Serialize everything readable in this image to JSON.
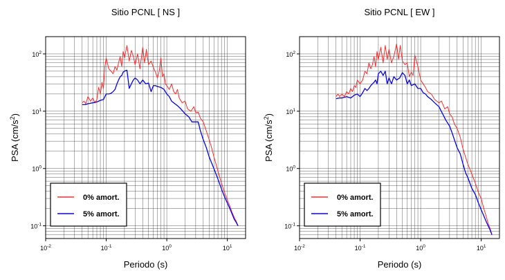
{
  "chart_data": [
    {
      "type": "line",
      "title": "Sitio PCNL [ NS ]",
      "xlabel": "Periodo (s)",
      "ylabel_main": "PSA (cm/s",
      "ylabel_sup": "2",
      "ylabel_close": ")",
      "xscale": "log",
      "yscale": "log",
      "xlim": [
        0.01,
        20
      ],
      "ylim": [
        0.06,
        200
      ],
      "grid": true,
      "legend_placement": "bottom-left",
      "x_ticks": [
        {
          "base": "10",
          "exp": "-2",
          "value": 0.01
        },
        {
          "base": "10",
          "exp": "-1",
          "value": 0.1
        },
        {
          "base": "10",
          "exp": "0",
          "value": 1
        },
        {
          "base": "10",
          "exp": "1",
          "value": 10
        }
      ],
      "y_ticks": [
        {
          "base": "10",
          "exp": "-1",
          "value": 0.1
        },
        {
          "base": "10",
          "exp": "0",
          "value": 1
        },
        {
          "base": "10",
          "exp": "1",
          "value": 10
        },
        {
          "base": "10",
          "exp": "2",
          "value": 100
        }
      ],
      "series": [
        {
          "name": "0% amort.",
          "color": "#ff2a2a",
          "x": [
            0.04,
            0.043,
            0.046,
            0.05,
            0.055,
            0.06,
            0.065,
            0.07,
            0.075,
            0.08,
            0.085,
            0.09,
            0.095,
            0.1,
            0.11,
            0.12,
            0.13,
            0.14,
            0.15,
            0.16,
            0.17,
            0.18,
            0.19,
            0.2,
            0.22,
            0.24,
            0.26,
            0.28,
            0.3,
            0.33,
            0.36,
            0.4,
            0.43,
            0.46,
            0.5,
            0.55,
            0.6,
            0.65,
            0.7,
            0.75,
            0.8,
            0.85,
            0.9,
            0.95,
            1.0,
            1.1,
            1.2,
            1.3,
            1.4,
            1.5,
            1.6,
            1.8,
            2.0,
            2.2,
            2.5,
            2.8,
            3.0,
            3.3,
            3.6,
            4.0,
            4.5,
            5.0,
            5.5,
            6.0,
            7.0,
            8.0,
            9.0,
            10.0,
            11.0,
            12.0,
            13.0,
            14.0,
            15.0
          ],
          "y": [
            14,
            15,
            13.5,
            18,
            15,
            17,
            14,
            16,
            26,
            20,
            32,
            25,
            60,
            85,
            55,
            50,
            45,
            60,
            52,
            70,
            90,
            60,
            110,
            85,
            140,
            75,
            115,
            90,
            65,
            100,
            55,
            130,
            70,
            120,
            65,
            75,
            58,
            48,
            38,
            50,
            85,
            40,
            45,
            30,
            28,
            24,
            30,
            22,
            20,
            24,
            17,
            14,
            15,
            11,
            10,
            12,
            9.5,
            9.6,
            7.5,
            6.5,
            4.5,
            3.2,
            2.3,
            1.6,
            0.9,
            0.55,
            0.38,
            0.28,
            0.22,
            0.17,
            0.14,
            0.12,
            0.1
          ]
        },
        {
          "name": "5% amort.",
          "color": "#0000ff",
          "x": [
            0.04,
            0.045,
            0.05,
            0.06,
            0.07,
            0.08,
            0.09,
            0.1,
            0.11,
            0.12,
            0.13,
            0.14,
            0.15,
            0.16,
            0.17,
            0.18,
            0.19,
            0.2,
            0.22,
            0.24,
            0.26,
            0.28,
            0.3,
            0.33,
            0.36,
            0.4,
            0.45,
            0.5,
            0.55,
            0.6,
            0.65,
            0.7,
            0.8,
            0.9,
            1.0,
            1.1,
            1.2,
            1.3,
            1.5,
            1.7,
            2.0,
            2.3,
            2.6,
            3.0,
            3.3,
            3.6,
            4.0,
            4.5,
            5.0,
            5.5,
            6.0,
            7.0,
            8.0,
            9.0,
            10.0,
            11.0,
            12.0,
            13.0,
            14.0,
            15.0
          ],
          "y": [
            13,
            13,
            13.5,
            14,
            14.5,
            15.5,
            16,
            20,
            20,
            20.5,
            22,
            24,
            30,
            35,
            40,
            42,
            48,
            50,
            52,
            25,
            30,
            35,
            38,
            35,
            30,
            35,
            30,
            31,
            22,
            28,
            28,
            27,
            26,
            24,
            20,
            18,
            15,
            14,
            12.5,
            11,
            9,
            8,
            6.5,
            6.5,
            6.5,
            4.5,
            3.2,
            2.3,
            1.6,
            1.25,
            1.0,
            0.65,
            0.44,
            0.32,
            0.25,
            0.2,
            0.16,
            0.13,
            0.115,
            0.1
          ]
        }
      ]
    },
    {
      "type": "line",
      "title": "Sitio PCNL [ EW ]",
      "xlabel": "Periodo (s)",
      "ylabel_main": "PSA (cm/s",
      "ylabel_sup": "2",
      "ylabel_close": ")",
      "xscale": "log",
      "yscale": "log",
      "xlim": [
        0.01,
        20
      ],
      "ylim": [
        0.06,
        200
      ],
      "grid": true,
      "legend_placement": "bottom-left",
      "x_ticks": [
        {
          "base": "10",
          "exp": "-2",
          "value": 0.01
        },
        {
          "base": "10",
          "exp": "-1",
          "value": 0.1
        },
        {
          "base": "10",
          "exp": "0",
          "value": 1
        },
        {
          "base": "10",
          "exp": "1",
          "value": 10
        }
      ],
      "y_ticks": [
        {
          "base": "10",
          "exp": "-1",
          "value": 0.1
        },
        {
          "base": "10",
          "exp": "0",
          "value": 1
        },
        {
          "base": "10",
          "exp": "1",
          "value": 10
        },
        {
          "base": "10",
          "exp": "2",
          "value": 100
        }
      ],
      "series": [
        {
          "name": "0% amort.",
          "color": "#ff2a2a",
          "x": [
            0.04,
            0.043,
            0.046,
            0.05,
            0.055,
            0.06,
            0.065,
            0.07,
            0.075,
            0.08,
            0.085,
            0.09,
            0.1,
            0.11,
            0.12,
            0.13,
            0.14,
            0.15,
            0.16,
            0.17,
            0.18,
            0.19,
            0.2,
            0.22,
            0.24,
            0.26,
            0.28,
            0.3,
            0.33,
            0.36,
            0.4,
            0.43,
            0.46,
            0.5,
            0.55,
            0.6,
            0.65,
            0.7,
            0.75,
            0.8,
            0.9,
            1.0,
            1.1,
            1.2,
            1.3,
            1.5,
            1.7,
            2.0,
            2.2,
            2.5,
            2.8,
            3.0,
            3.3,
            3.6,
            4.0,
            4.5,
            5.0,
            5.5,
            6.0,
            7.0,
            8.0,
            9.0,
            10.0,
            11.0,
            12.0,
            13.0,
            14.0,
            15.0
          ],
          "y": [
            18,
            20,
            18,
            20,
            18,
            22,
            20,
            25,
            22,
            28,
            26,
            35,
            30,
            35,
            50,
            45,
            70,
            55,
            65,
            90,
            60,
            110,
            80,
            130,
            70,
            140,
            80,
            120,
            70,
            90,
            150,
            80,
            140,
            75,
            65,
            70,
            40,
            48,
            42,
            95,
            60,
            35,
            30,
            26,
            22,
            20,
            16,
            14,
            15,
            11,
            12,
            9,
            8,
            6,
            5,
            3.5,
            2.2,
            1.6,
            1.2,
            0.8,
            0.55,
            0.38,
            0.3,
            0.2,
            0.15,
            0.11,
            0.09,
            0.07
          ]
        },
        {
          "name": "5% amort.",
          "color": "#0000ff",
          "x": [
            0.04,
            0.045,
            0.05,
            0.06,
            0.07,
            0.08,
            0.09,
            0.1,
            0.11,
            0.12,
            0.13,
            0.14,
            0.15,
            0.16,
            0.17,
            0.18,
            0.19,
            0.2,
            0.22,
            0.24,
            0.26,
            0.28,
            0.3,
            0.33,
            0.36,
            0.4,
            0.45,
            0.5,
            0.55,
            0.6,
            0.65,
            0.7,
            0.8,
            0.9,
            1.0,
            1.1,
            1.2,
            1.3,
            1.5,
            1.7,
            2.0,
            2.3,
            2.6,
            3.0,
            3.3,
            3.6,
            4.0,
            4.5,
            5.0,
            5.5,
            6.0,
            7.0,
            8.0,
            9.0,
            10.0,
            11.0,
            12.0,
            13.0,
            14.0,
            15.0
          ],
          "y": [
            16.5,
            17,
            17,
            18,
            17,
            19,
            20,
            18,
            21,
            25,
            23,
            25,
            28,
            30,
            32,
            35,
            30,
            45,
            50,
            42,
            50,
            30,
            38,
            30,
            40,
            35,
            38,
            47,
            42,
            30,
            35,
            28,
            30,
            25,
            25,
            21,
            20,
            18,
            16,
            14,
            12,
            9,
            7,
            5.5,
            4.2,
            3.2,
            2.3,
            1.8,
            1.2,
            0.85,
            0.7,
            0.45,
            0.35,
            0.25,
            0.19,
            0.15,
            0.12,
            0.1,
            0.085,
            0.07
          ]
        }
      ]
    }
  ]
}
